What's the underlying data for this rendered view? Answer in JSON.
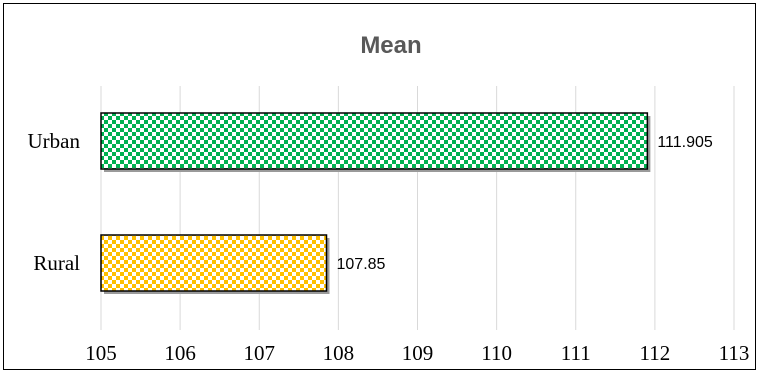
{
  "chart_data": {
    "type": "bar",
    "orientation": "horizontal",
    "title": "Mean",
    "categories": [
      "Urban",
      "Rural"
    ],
    "values": [
      111.905,
      107.85
    ],
    "data_labels": [
      "111.905",
      "107.85"
    ],
    "xlim": [
      105,
      113
    ],
    "x_ticks": [
      "105",
      "106",
      "107",
      "108",
      "109",
      "110",
      "111",
      "112",
      "113"
    ],
    "grid": "vertical",
    "legend": "none",
    "colors": {
      "Urban": "#00b050",
      "Rural": "#ffc000"
    },
    "pattern": "checkerboard"
  }
}
